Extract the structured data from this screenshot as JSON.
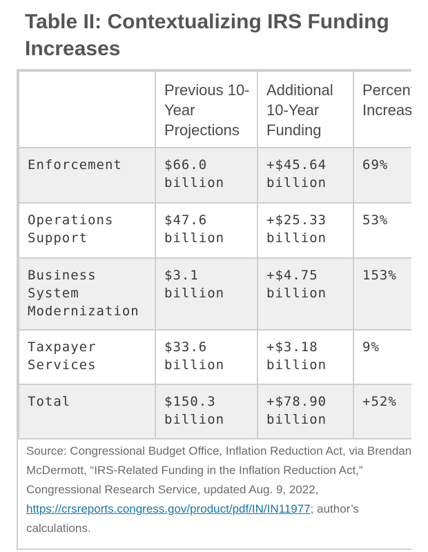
{
  "title": "Table II: Contextualizing IRS Funding Increases",
  "table": {
    "headers": [
      "",
      "Previous 10-Year Projections",
      "Additional 10-Year Funding",
      "Percent Increase"
    ],
    "rows": [
      {
        "label": "Enforcement",
        "previous": "$66.0 billion",
        "additional": "+$45.64 billion",
        "percent": "69%"
      },
      {
        "label": "Operations Support",
        "previous": "$47.6 billion",
        "additional": "+$25.33 billion",
        "percent": "53%"
      },
      {
        "label": "Business System Modernization",
        "previous": "$3.1 billion",
        "additional": "+$4.75 billion",
        "percent": "153%"
      },
      {
        "label": "Taxpayer Services",
        "previous": "$33.6 billion",
        "additional": "+$3.18 billion",
        "percent": "9%"
      },
      {
        "label": "Total",
        "previous": "$150.3 billion",
        "additional": "+$78.90 billion",
        "percent": "+52%"
      }
    ]
  },
  "source": {
    "line1": "Source: Congressional Budget Office, Inflation Reduction Act, via Brendan",
    "line2": "McDermott, “IRS-Related Funding in the Inflation Reduction Act,”",
    "line3": "Congressional Research Service, updated Aug. 9, 2022,",
    "link": "https://crsreports.congress.gov/product/pdf/IN/IN11977",
    "after_link": "; author’s",
    "line5": "calculations."
  }
}
